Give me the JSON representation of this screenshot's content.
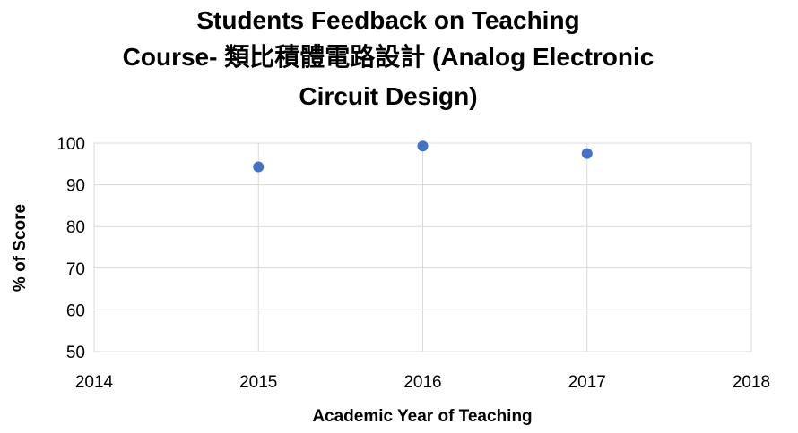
{
  "chart_data": {
    "type": "scatter",
    "title_lines": [
      "Students Feedback on Teaching",
      "Course- 類比積體電路設計 (Analog Electronic",
      "Circuit Design)"
    ],
    "xlabel": "Academic Year of Teaching",
    "ylabel": "% of Score",
    "xlim": [
      2014,
      2018
    ],
    "ylim": [
      50,
      100
    ],
    "x_ticks": [
      2014,
      2015,
      2016,
      2017,
      2018
    ],
    "y_ticks": [
      50,
      60,
      70,
      80,
      90,
      100
    ],
    "grid": true,
    "legend": "none",
    "point_color": "#4472C4",
    "x": [
      2015,
      2016,
      2017
    ],
    "y": [
      94.3,
      99.3,
      97.5
    ]
  }
}
